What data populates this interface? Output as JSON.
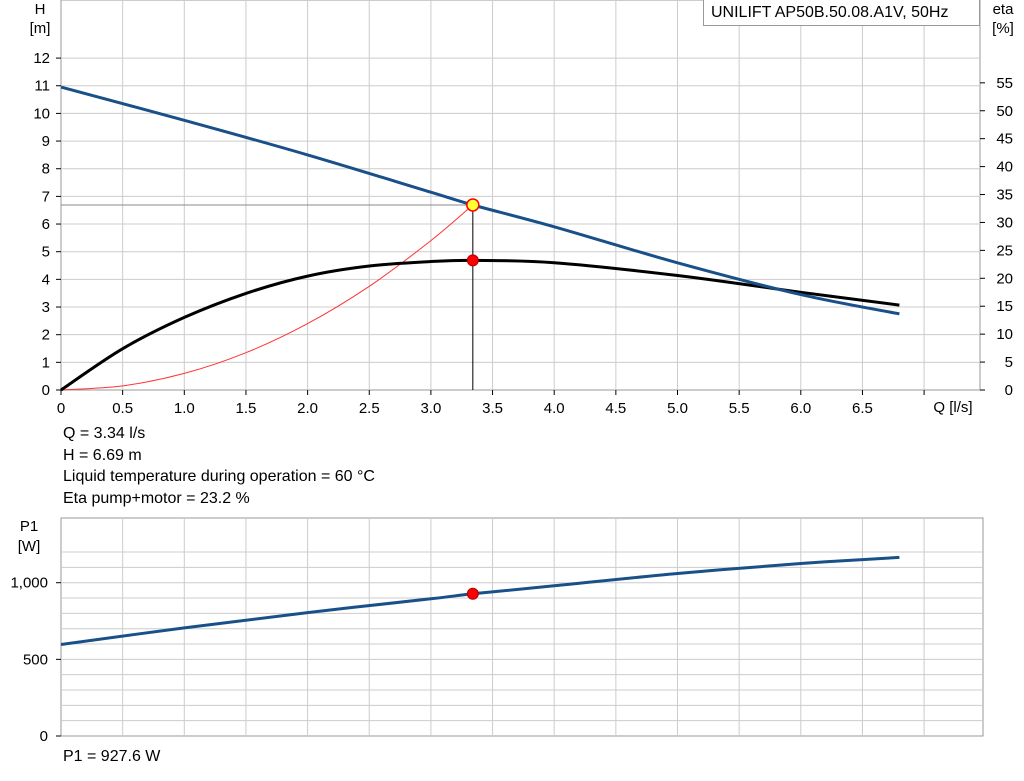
{
  "chart_data": [
    {
      "type": "line",
      "title": "UNILIFT AP50B.50.08.A1V, 50Hz",
      "xlabel": "Q [l/s]",
      "ylabel": "H",
      "ylabel_unit": "[m]",
      "y2label": "eta",
      "y2label_unit": "[%]",
      "xlim": [
        0,
        6.8
      ],
      "ylim": [
        0,
        12
      ],
      "y2lim": [
        0,
        55
      ],
      "x_ticks": [
        "0",
        "0.5",
        "1.0",
        "1.5",
        "2.0",
        "2.5",
        "3.0",
        "3.5",
        "4.0",
        "4.5",
        "5.0",
        "5.5",
        "6.0",
        "6.5"
      ],
      "y_ticks": [
        "0",
        "1",
        "2",
        "3",
        "4",
        "5",
        "6",
        "7",
        "8",
        "9",
        "10",
        "11",
        "12"
      ],
      "y2_ticks": [
        "0",
        "5",
        "10",
        "15",
        "20",
        "25",
        "30",
        "35",
        "40",
        "45",
        "50",
        "55"
      ],
      "grid": true,
      "series": [
        {
          "axis": "H",
          "color": "#1a5089",
          "x": [
            0,
            1,
            2,
            3,
            3.34,
            4,
            5,
            6,
            6.8
          ],
          "y": [
            10.95,
            9.75,
            8.5,
            7.15,
            6.69,
            5.9,
            4.6,
            3.45,
            2.75
          ]
        },
        {
          "axis": "eta",
          "color": "#000000",
          "x": [
            0,
            0.5,
            1,
            1.5,
            2,
            2.5,
            3,
            3.34,
            4,
            5,
            6,
            6.8
          ],
          "y": [
            0,
            7.4,
            13.0,
            17.3,
            20.4,
            22.2,
            23.0,
            23.2,
            22.8,
            20.5,
            17.5,
            15.2
          ]
        },
        {
          "axis": "H",
          "color": "#ff3333",
          "x": [
            0,
            0.5,
            1,
            1.5,
            2,
            2.5,
            3,
            3.34
          ],
          "y": [
            0,
            0.15,
            0.6,
            1.35,
            2.4,
            3.75,
            5.4,
            6.69
          ]
        }
      ],
      "operating_point": {
        "x": 3.34,
        "y": 6.69,
        "eta": 23.2
      }
    },
    {
      "type": "line",
      "ylabel": "P1",
      "ylabel_unit": "[W]",
      "xlim": [
        0,
        6.8
      ],
      "ylim": [
        0,
        1250
      ],
      "y_ticks": [
        {
          "value": 0,
          "label": "0"
        },
        {
          "value": 500,
          "label": "500"
        },
        {
          "value": 1000,
          "label": "1,000"
        }
      ],
      "grid": true,
      "series": [
        {
          "color": "#1a5089",
          "x": [
            0,
            1,
            2,
            3,
            3.34,
            4,
            5,
            6,
            6.8
          ],
          "y": [
            597,
            705,
            805,
            895,
            927.6,
            980,
            1060,
            1125,
            1165
          ]
        }
      ],
      "operating_point": {
        "x": 3.34,
        "y": 927.6
      }
    }
  ],
  "info": {
    "q": "Q = 3.34 l/s",
    "h": "H = 6.69 m",
    "temp": "Liquid temperature during operation = 60 °C",
    "eta": "Eta pump+motor = 23.2 %",
    "p1": "P1 = 927.6 W"
  }
}
